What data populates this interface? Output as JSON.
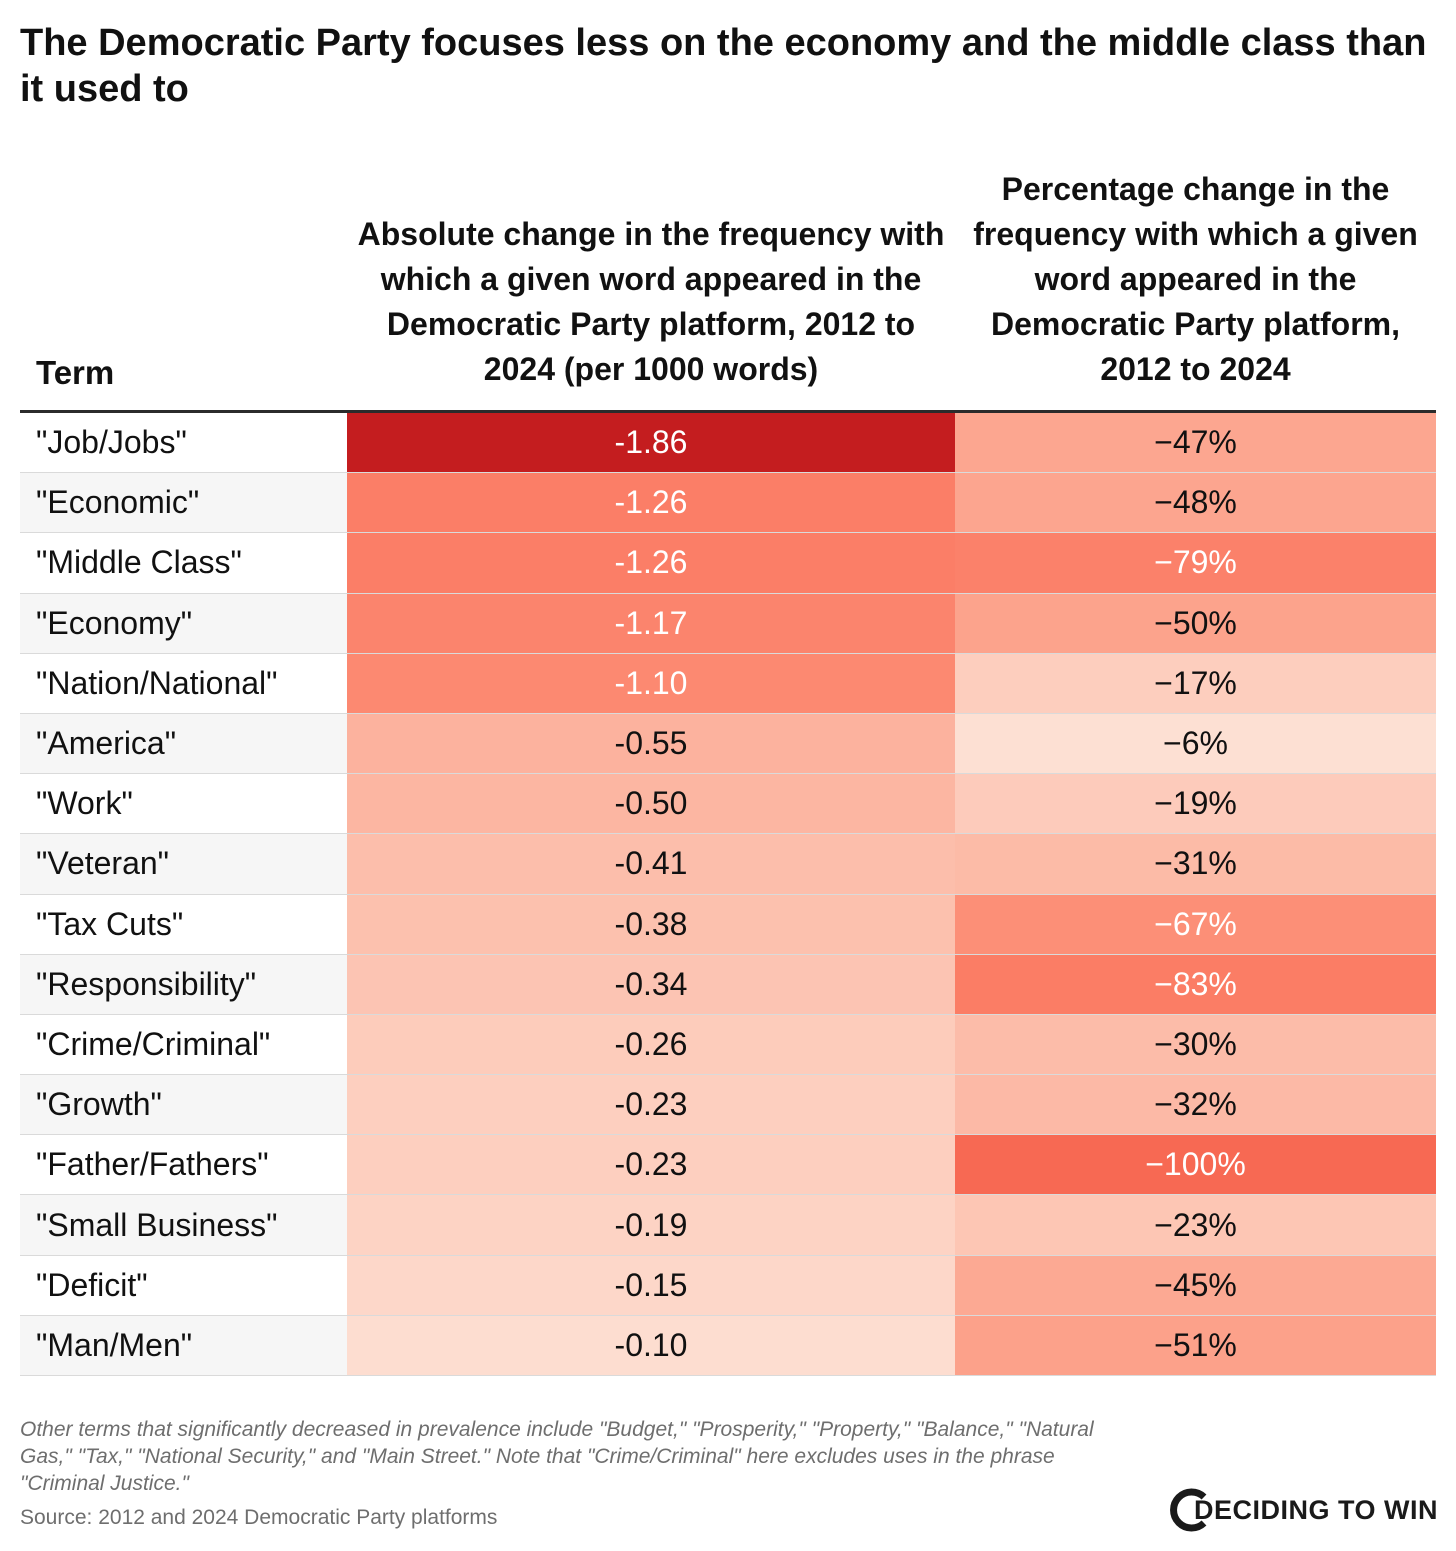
{
  "title": "The Democratic Party focuses less on the economy and the middle class than it used to",
  "chart_data": {
    "type": "table",
    "columns": [
      "Term",
      "Absolute change in the frequency with which a given word appeared in the Democratic Party platform, 2012 to 2024 (per 1000 words)",
      "Percentage change in the frequency with which a given word appeared in the Democratic Party platform, 2012 to 2024"
    ],
    "rows": [
      {
        "term": "\"Job/Jobs\"",
        "abs_change": -1.86,
        "abs_label": "-1.86",
        "pct_change": -47,
        "pct_label": "−47%"
      },
      {
        "term": "\"Economic\"",
        "abs_change": -1.26,
        "abs_label": "-1.26",
        "pct_change": -48,
        "pct_label": "−48%"
      },
      {
        "term": "\"Middle Class\"",
        "abs_change": -1.26,
        "abs_label": "-1.26",
        "pct_change": -79,
        "pct_label": "−79%"
      },
      {
        "term": "\"Economy\"",
        "abs_change": -1.17,
        "abs_label": "-1.17",
        "pct_change": -50,
        "pct_label": "−50%"
      },
      {
        "term": "\"Nation/National\"",
        "abs_change": -1.1,
        "abs_label": "-1.10",
        "pct_change": -17,
        "pct_label": "−17%"
      },
      {
        "term": "\"America\"",
        "abs_change": -0.55,
        "abs_label": "-0.55",
        "pct_change": -6,
        "pct_label": "−6%"
      },
      {
        "term": "\"Work\"",
        "abs_change": -0.5,
        "abs_label": "-0.50",
        "pct_change": -19,
        "pct_label": "−19%"
      },
      {
        "term": "\"Veteran\"",
        "abs_change": -0.41,
        "abs_label": "-0.41",
        "pct_change": -31,
        "pct_label": "−31%"
      },
      {
        "term": "\"Tax Cuts\"",
        "abs_change": -0.38,
        "abs_label": "-0.38",
        "pct_change": -67,
        "pct_label": "−67%"
      },
      {
        "term": "\"Responsibility\"",
        "abs_change": -0.34,
        "abs_label": "-0.34",
        "pct_change": -83,
        "pct_label": "−83%"
      },
      {
        "term": "\"Crime/Criminal\"",
        "abs_change": -0.26,
        "abs_label": "-0.26",
        "pct_change": -30,
        "pct_label": "−30%"
      },
      {
        "term": "\"Growth\"",
        "abs_change": -0.23,
        "abs_label": "-0.23",
        "pct_change": -32,
        "pct_label": "−32%"
      },
      {
        "term": "\"Father/Fathers\"",
        "abs_change": -0.23,
        "abs_label": "-0.23",
        "pct_change": -100,
        "pct_label": "−100%"
      },
      {
        "term": "\"Small Business\"",
        "abs_change": -0.19,
        "abs_label": "-0.19",
        "pct_change": -23,
        "pct_label": "−23%"
      },
      {
        "term": "\"Deficit\"",
        "abs_change": -0.15,
        "abs_label": "-0.15",
        "pct_change": -45,
        "pct_label": "−45%"
      },
      {
        "term": "\"Man/Men\"",
        "abs_change": -0.1,
        "abs_label": "-0.10",
        "pct_change": -51,
        "pct_label": "−51%"
      }
    ]
  },
  "colors": {
    "darkest_red": "#c41d1f",
    "scale_light": "#fdeee3",
    "scale_mid": "#fc9c84",
    "scale_strong": "#fb6e57",
    "text_dark": "#111111",
    "text_light": "#ffffff"
  },
  "note": "Other terms that significantly decreased in prevalence include \"Budget,\" \"Prosperity,\" \"Property,\" \"Balance,\" \"Natural Gas,\" \"Tax,\" \"National Security,\" and \"Main Street.\" Note that \"Crime/Criminal\" here excludes uses in the phrase \"Criminal Justice.\"",
  "source": "Source: 2012 and 2024 Democratic Party platforms",
  "brand": "DECIDING TO WIN"
}
